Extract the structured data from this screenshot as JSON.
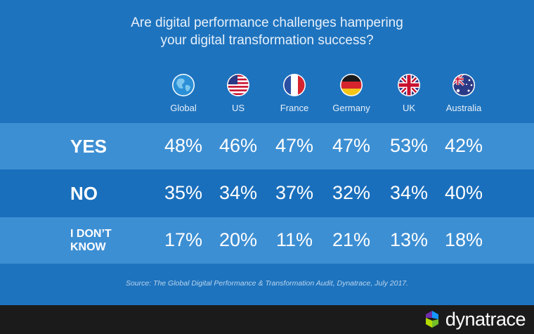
{
  "title_lines": [
    "Are digital performance challenges hampering",
    "your digital transformation success?"
  ],
  "chart_data": {
    "type": "table",
    "title": "Are digital performance challenges hampering your digital transformation success?",
    "categories": [
      "Global",
      "US",
      "France",
      "Germany",
      "UK",
      "Australia"
    ],
    "series": [
      {
        "name": "YES",
        "values": [
          48,
          46,
          47,
          47,
          53,
          42
        ]
      },
      {
        "name": "NO",
        "values": [
          35,
          34,
          37,
          32,
          34,
          40
        ]
      },
      {
        "name": "I DON'T KNOW",
        "values": [
          17,
          20,
          11,
          21,
          13,
          18
        ]
      }
    ],
    "value_suffix": "%"
  },
  "row_labels": {
    "yes": "YES",
    "no": "NO",
    "dont_know_line1": "I DON’T",
    "dont_know_line2": "KNOW"
  },
  "source": "Source: The Global Digital Performance & Transformation Audit, Dynatrace, July 2017.",
  "brand": {
    "name": "dynatrace"
  },
  "colors": {
    "background": "#1e73be",
    "row_highlight": "#3d8fd3",
    "footer": "#1b1b1b"
  }
}
